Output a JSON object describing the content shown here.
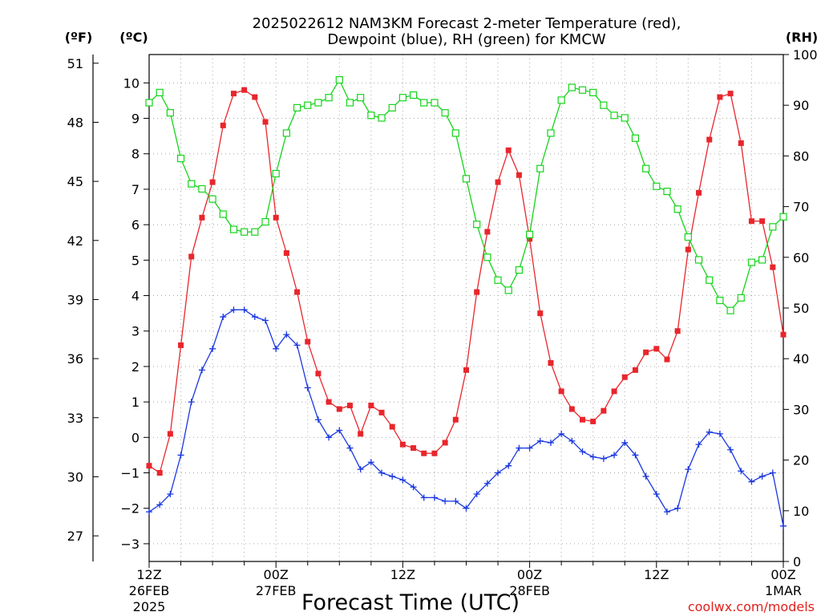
{
  "title_line1": "2025022612 NAM3KM Forecast 2-meter Temperature (red),",
  "title_line2": "Dewpoint (blue), RH (green) for KMCW",
  "unit_f": "(ºF)",
  "unit_c": "(ºC)",
  "unit_rh": "(RH)",
  "xlabel": "Forecast Time (UTC)",
  "credit": "coolwx.com/models",
  "colors": {
    "temperature": "#e8262c",
    "dewpoint": "#1a37e0",
    "rh": "#15d41a"
  },
  "chart_data": {
    "type": "line",
    "title": "2025022612 NAM3KM Forecast 2-meter Temperature (red), Dewpoint (blue), RH (green) for KMCW",
    "xlabel": "Forecast Time (UTC)",
    "x_hours": [
      0,
      1,
      2,
      3,
      4,
      5,
      6,
      7,
      8,
      9,
      10,
      11,
      12,
      13,
      14,
      15,
      16,
      17,
      18,
      19,
      20,
      21,
      22,
      23,
      24,
      25,
      26,
      27,
      28,
      29,
      30,
      31,
      32,
      33,
      34,
      35,
      36,
      37,
      38,
      39,
      40,
      41,
      42,
      43,
      44,
      45,
      46,
      47,
      48,
      49,
      50,
      51,
      52,
      53,
      54,
      55,
      56,
      57,
      58,
      59,
      60
    ],
    "x_ticks": [
      {
        "hour": 0,
        "label1": "12Z",
        "label2": "26FEB",
        "label3": "2025"
      },
      {
        "hour": 12,
        "label1": "00Z",
        "label2": "27FEB",
        "label3": ""
      },
      {
        "hour": 24,
        "label1": "12Z",
        "label2": "",
        "label3": ""
      },
      {
        "hour": 36,
        "label1": "00Z",
        "label2": "28FEB",
        "label3": ""
      },
      {
        "hour": 48,
        "label1": "12Z",
        "label2": "",
        "label3": ""
      },
      {
        "hour": 60,
        "label1": "00Z",
        "label2": "1MAR",
        "label3": ""
      }
    ],
    "xlim": [
      0,
      60
    ],
    "y_celsius": {
      "lim": [
        -3.5,
        10.8
      ],
      "ticks": [
        -3,
        -2,
        -1,
        0,
        1,
        2,
        3,
        4,
        5,
        6,
        7,
        8,
        9,
        10
      ]
    },
    "y_fahrenheit": {
      "ticks": [
        27,
        30,
        33,
        36,
        39,
        42,
        45,
        48,
        51
      ]
    },
    "y_rh": {
      "lim": [
        0,
        100
      ],
      "ticks": [
        0,
        10,
        20,
        30,
        40,
        50,
        60,
        70,
        80,
        90,
        100
      ]
    },
    "grid": true,
    "series": [
      {
        "key": "temperature",
        "axis": "celsius",
        "marker": "square-filled",
        "values": [
          -0.8,
          -1.0,
          0.1,
          2.6,
          5.1,
          6.2,
          7.2,
          8.8,
          9.7,
          9.8,
          9.6,
          8.9,
          6.2,
          5.2,
          4.1,
          2.7,
          1.8,
          1.0,
          0.8,
          0.9,
          0.1,
          0.9,
          0.7,
          0.3,
          -0.2,
          -0.3,
          -0.45,
          -0.45,
          -0.15,
          0.5,
          1.9,
          4.1,
          5.8,
          7.2,
          8.1,
          7.4,
          5.6,
          3.5,
          2.1,
          1.3,
          0.8,
          0.5,
          0.45,
          0.75,
          1.3,
          1.7,
          1.9,
          2.4,
          2.5,
          2.2,
          3.0,
          5.3,
          6.9,
          8.4,
          9.6,
          9.7,
          8.3,
          6.1,
          6.1,
          4.8,
          2.9
        ]
      },
      {
        "key": "dewpoint",
        "axis": "celsius",
        "marker": "plus",
        "values": [
          -2.1,
          -1.9,
          -1.6,
          -0.5,
          1.0,
          1.9,
          2.5,
          3.4,
          3.6,
          3.6,
          3.4,
          3.3,
          2.5,
          2.9,
          2.6,
          1.4,
          0.5,
          0.0,
          0.2,
          -0.3,
          -0.9,
          -0.7,
          -1.0,
          -1.1,
          -1.2,
          -1.4,
          -1.7,
          -1.7,
          -1.8,
          -1.8,
          -2.0,
          -1.6,
          -1.3,
          -1.0,
          -0.8,
          -0.3,
          -0.3,
          -0.1,
          -0.15,
          0.1,
          -0.1,
          -0.4,
          -0.55,
          -0.6,
          -0.5,
          -0.15,
          -0.5,
          -1.1,
          -1.6,
          -2.1,
          -2.0,
          -0.9,
          -0.2,
          0.15,
          0.1,
          -0.35,
          -0.95,
          -1.25,
          -1.1,
          -1.0,
          -2.5
        ]
      },
      {
        "key": "rh",
        "axis": "rh",
        "marker": "square-open",
        "values": [
          90.5,
          92.5,
          88.5,
          79.5,
          74.5,
          73.5,
          71.5,
          68.5,
          65.5,
          65.0,
          65.0,
          67.0,
          76.5,
          84.5,
          89.5,
          90.0,
          90.5,
          91.5,
          95.0,
          90.5,
          91.5,
          88.0,
          87.5,
          89.5,
          91.5,
          92.0,
          90.5,
          90.5,
          88.5,
          84.5,
          75.5,
          66.5,
          60.0,
          55.5,
          53.5,
          57.5,
          64.5,
          77.5,
          84.5,
          91.0,
          93.5,
          93.0,
          92.5,
          90.0,
          88.0,
          87.5,
          83.5,
          77.5,
          74.0,
          73.0,
          69.5,
          64.0,
          59.5,
          55.5,
          51.5,
          49.5,
          52.0,
          59.0,
          59.5,
          66.0,
          68.0
        ]
      }
    ]
  }
}
